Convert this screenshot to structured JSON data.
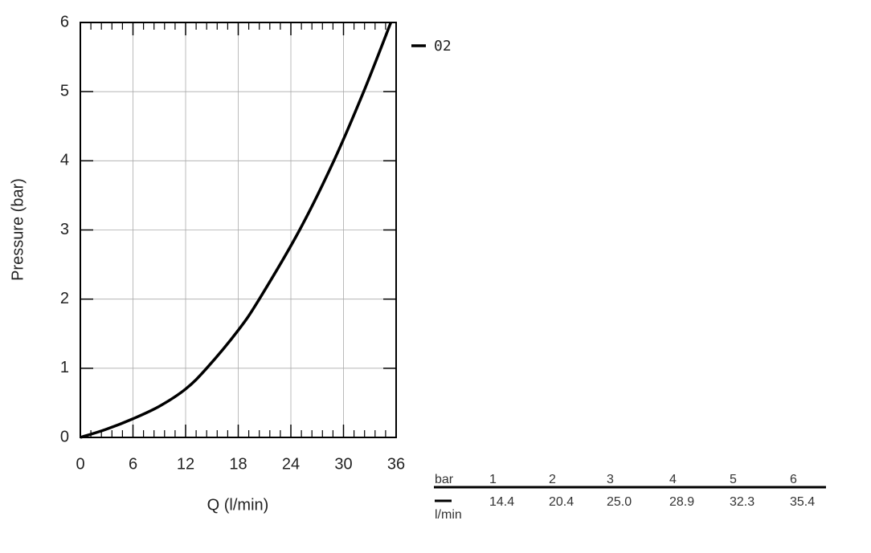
{
  "chart_data": {
    "type": "line",
    "xlabel": "Q (l/min)",
    "ylabel": "Pressure (bar)",
    "series": [
      {
        "name": "02",
        "color": "#000000",
        "x": [
          0,
          3,
          6,
          9,
          12,
          14.4,
          18,
          20.4,
          25,
          28.9,
          32.3,
          35.4
        ],
        "values": [
          0,
          0.12,
          0.27,
          0.45,
          0.7,
          1,
          1.55,
          2,
          3,
          4,
          5,
          6
        ]
      }
    ],
    "xlim": [
      0,
      36
    ],
    "xticks": [
      0,
      6,
      12,
      18,
      24,
      30,
      36
    ],
    "xminorticks": [
      1.2,
      2.4,
      3.6,
      4.8,
      7.2,
      8.4,
      9.6,
      10.8,
      13.2,
      14.4,
      15.6,
      16.8,
      19.2,
      20.4,
      21.6,
      22.8,
      25.2,
      26.4,
      27.6,
      28.8,
      31.2,
      32.4,
      33.6,
      34.8
    ],
    "ylim": [
      0,
      6
    ],
    "yticks": [
      0,
      1,
      2,
      3,
      4,
      5,
      6
    ],
    "grid": true
  },
  "table": {
    "row_labels": [
      "bar",
      "l/min"
    ],
    "header": [
      1,
      2,
      3,
      4,
      5,
      6
    ],
    "values": [
      "14.4",
      "20.4",
      "25.0",
      "28.9",
      "32.3",
      "35.4"
    ]
  }
}
